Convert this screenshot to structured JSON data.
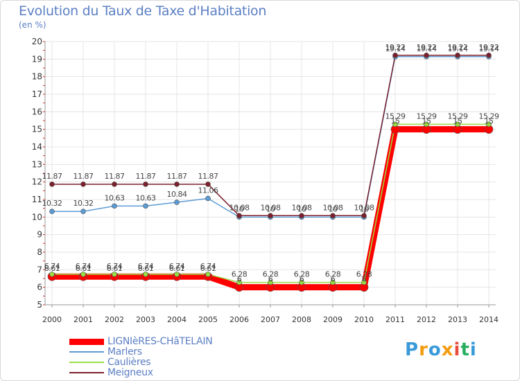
{
  "chart_data": {
    "type": "line",
    "title": "Evolution du Taux de Taxe d'Habitation",
    "ylabel": "(en %)",
    "ylim": [
      5,
      20
    ],
    "yticks": [
      5,
      6,
      7,
      8,
      9,
      10,
      11,
      12,
      13,
      14,
      15,
      16,
      17,
      18,
      19,
      20
    ],
    "x": [
      "2000",
      "2001",
      "2002",
      "2003",
      "2004",
      "2005",
      "2006",
      "2007",
      "2008",
      "2009",
      "2010",
      "2011",
      "2012",
      "2013",
      "2014"
    ],
    "series": [
      {
        "name": "LIGNIèRES-CHâTELAIN",
        "color": "#ff0000",
        "values": [
          6.61,
          6.61,
          6.61,
          6.61,
          6.61,
          6.61,
          6,
          6,
          6,
          6,
          6,
          15,
          15,
          15,
          15
        ],
        "labels": [
          "6.61",
          "6.61",
          "6.61",
          "6.61",
          "6.61",
          "6.61",
          "6",
          "6",
          "6",
          "6",
          "6",
          "15",
          "15",
          "15",
          "15"
        ]
      },
      {
        "name": "Marlers",
        "color": "#5b9bd5",
        "values": [
          10.32,
          10.32,
          10.63,
          10.63,
          10.84,
          11.06,
          10,
          10,
          10,
          10,
          10,
          19.14,
          19.14,
          19.14,
          19.14
        ],
        "labels": [
          "10.32",
          "10.32",
          "10.63",
          "10.63",
          "10.84",
          "11.06",
          "10",
          "10",
          "10",
          "10",
          "10",
          "19.14",
          "19.14",
          "19.14",
          "19.14"
        ]
      },
      {
        "name": "Caulières",
        "color": "#99dd44",
        "values": [
          6.74,
          6.74,
          6.74,
          6.74,
          6.74,
          6.74,
          6.28,
          6.28,
          6.28,
          6.28,
          6.28,
          15.29,
          15.29,
          15.29,
          15.29
        ],
        "labels": [
          "6.74",
          "6.74",
          "6.74",
          "6.74",
          "6.74",
          "6.74",
          "6.28",
          "6.28",
          "6.28",
          "6.28",
          "6.28",
          "15.29",
          "15.29",
          "15.29",
          "15.29"
        ]
      },
      {
        "name": "Meigneux",
        "color": "#7a1f2b",
        "values": [
          11.87,
          11.87,
          11.87,
          11.87,
          11.87,
          11.87,
          10.08,
          10.08,
          10.08,
          10.08,
          10.08,
          19.22,
          19.22,
          19.22,
          19.22
        ],
        "labels": [
          "11.87",
          "11.87",
          "11.87",
          "11.87",
          "11.87",
          "11.87",
          "10.08",
          "10.08",
          "10.08",
          "10.08",
          "10.08",
          "19.22",
          "19.22",
          "19.22",
          "19.22"
        ]
      }
    ]
  },
  "logo": {
    "text": "Proxiti"
  }
}
